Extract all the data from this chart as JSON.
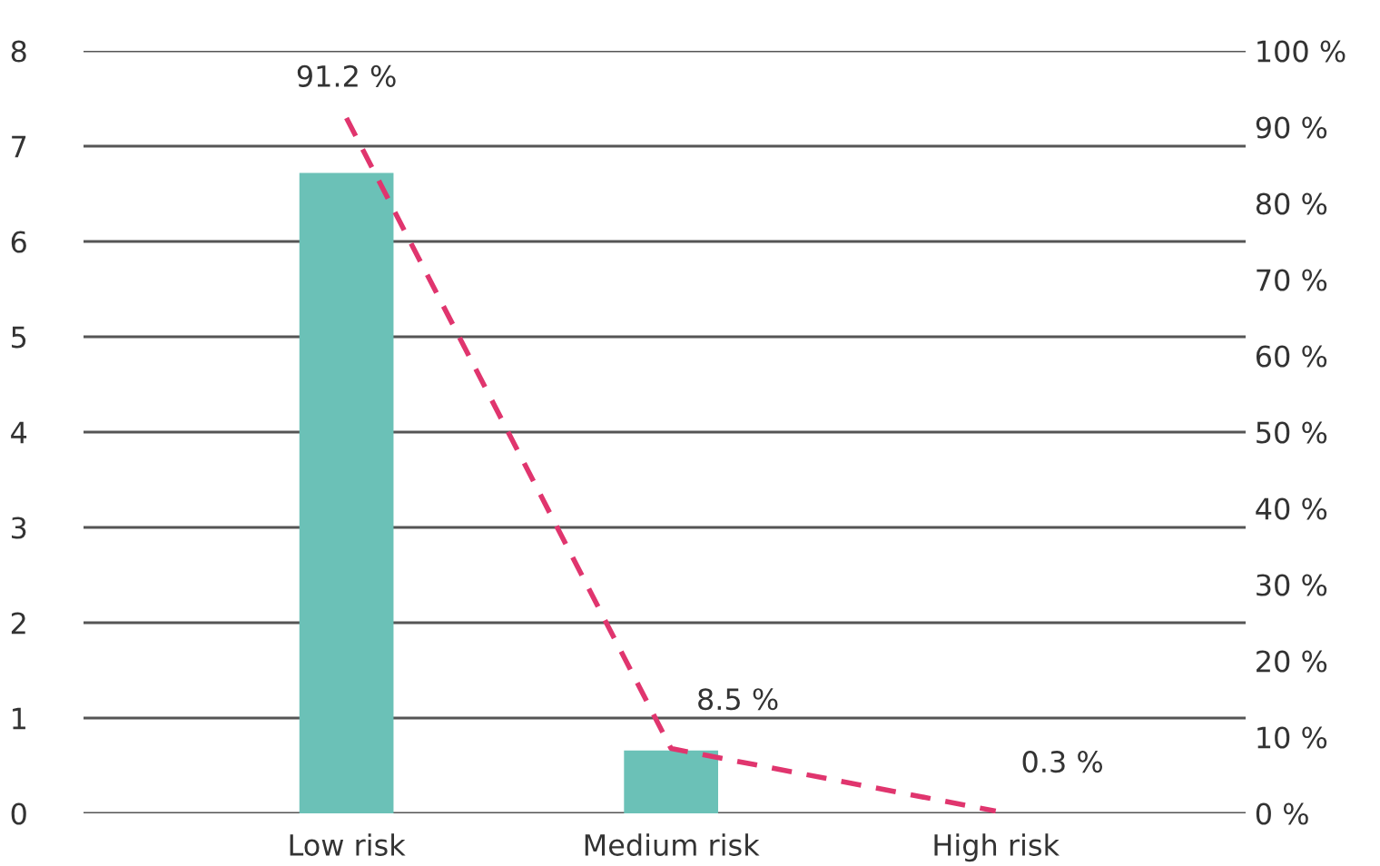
{
  "chart_data": {
    "type": "bar",
    "categories": [
      "Low risk",
      "Medium risk",
      "High risk"
    ],
    "series": [
      {
        "color": "#6bc1b7",
        "values": [
          6.72,
          0.66,
          0
        ]
      },
      {
        "type": "line",
        "axis": "y2",
        "color": "#e0356e",
        "line_style": "dashed",
        "values": [
          91.2,
          8.5,
          0.3
        ],
        "value_labels": [
          "91.2 %",
          "8.5 %",
          "0.3 %"
        ]
      }
    ],
    "ylim": [
      0,
      8
    ],
    "yticks": [
      0,
      1,
      2,
      3,
      4,
      5,
      6,
      7,
      8
    ],
    "y2lim": [
      0,
      100
    ],
    "y2ticks": [
      {
        "value": 0,
        "label": "0 %"
      },
      {
        "value": 10,
        "label": "10 %"
      },
      {
        "value": 20,
        "label": "20 %"
      },
      {
        "value": 30,
        "label": "30 %"
      },
      {
        "value": 40,
        "label": "40 %"
      },
      {
        "value": 50,
        "label": "50 %"
      },
      {
        "value": 60,
        "label": "60 %"
      },
      {
        "value": 70,
        "label": "70 %"
      },
      {
        "value": 80,
        "label": "80 %"
      },
      {
        "value": 90,
        "label": "90 %"
      },
      {
        "value": 100,
        "label": "100 %"
      }
    ],
    "grid": "y",
    "legend": false
  }
}
